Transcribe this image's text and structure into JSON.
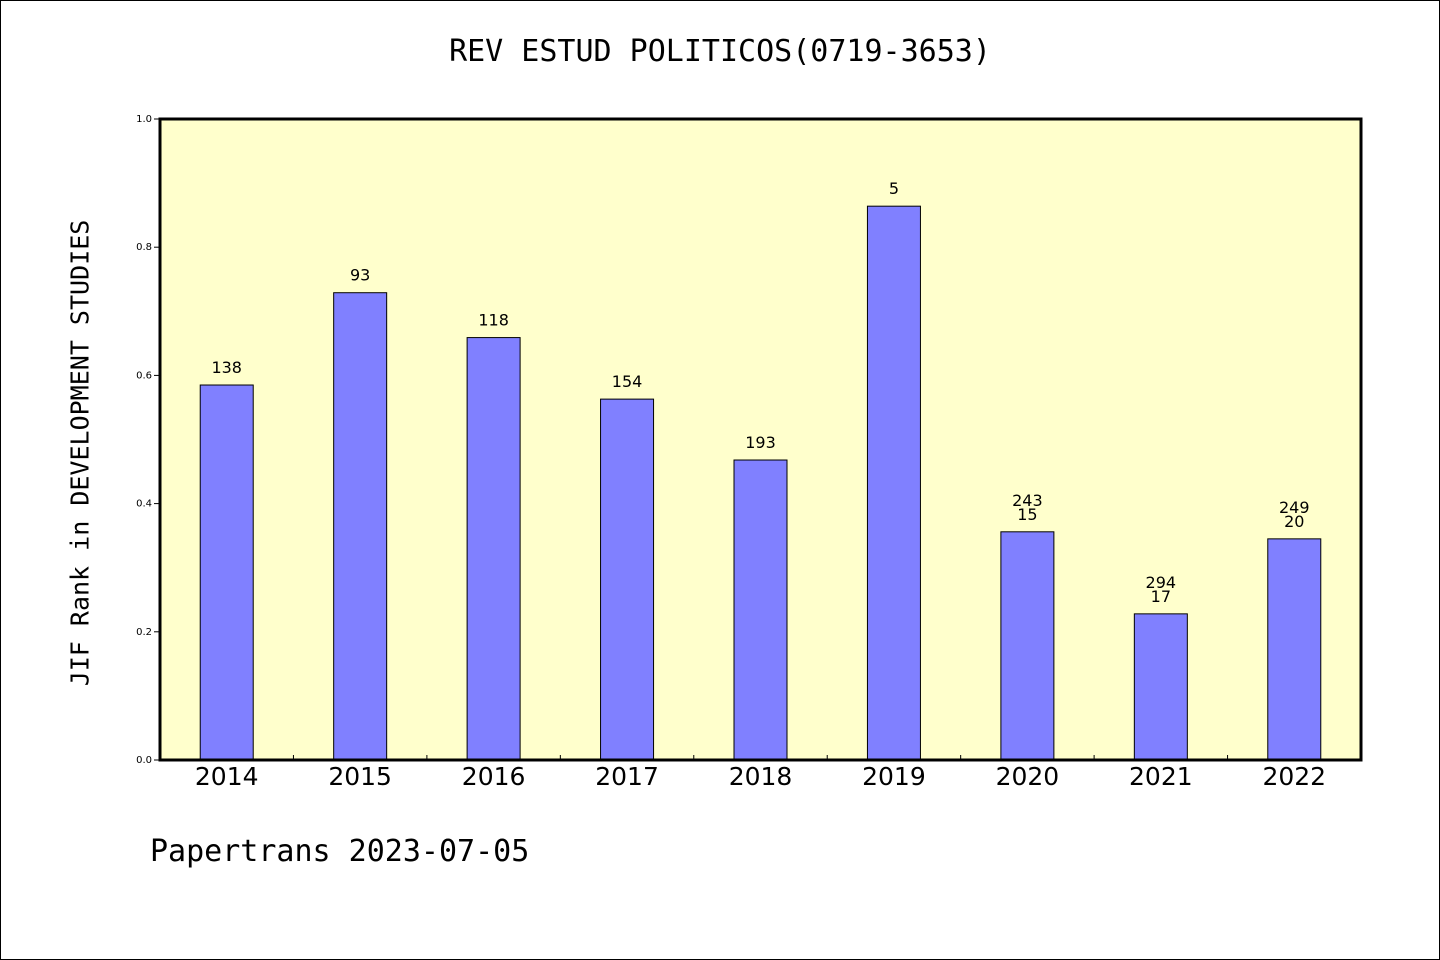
{
  "title": "REV ESTUD POLITICOS(0719-3653)",
  "footer": "Papertrans 2023-07-05",
  "colors": {
    "plot_bg": "#ffffcc",
    "bar": "#8080ff",
    "axis": "#000000"
  },
  "chart_data": {
    "type": "bar",
    "title": "REV ESTUD POLITICOS(0719-3653)",
    "xlabel": "",
    "ylabel": "JIF Rank in DEVELOPMENT STUDIES",
    "ylim": [
      0,
      1.0
    ],
    "yticks": [
      "0.0",
      "0.2",
      "0.4",
      "0.6",
      "0.8",
      "1.0"
    ],
    "grid": false,
    "categories": [
      "2014",
      "2015",
      "2016",
      "2017",
      "2018",
      "2019",
      "2020",
      "2021",
      "2022"
    ],
    "values": [
      0.585,
      0.729,
      0.659,
      0.563,
      0.468,
      0.864,
      0.356,
      0.228,
      0.345
    ],
    "labels": [
      [
        "138"
      ],
      [
        "93"
      ],
      [
        "118"
      ],
      [
        "154"
      ],
      [
        "193"
      ],
      [
        "5"
      ],
      [
        "243",
        "15"
      ],
      [
        "294",
        "17"
      ],
      [
        "249",
        "20"
      ]
    ]
  }
}
